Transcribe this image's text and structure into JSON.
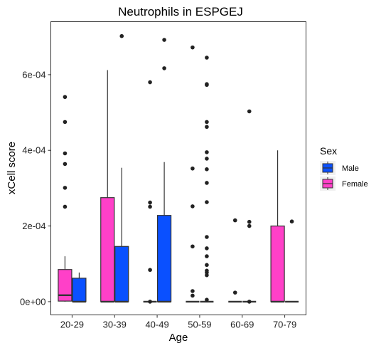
{
  "chart_data": {
    "type": "boxplot",
    "title": "Neutrophils in ESPGEJ",
    "xlabel": "Age",
    "ylabel": "xCell score",
    "categories": [
      "20-29",
      "30-39",
      "40-49",
      "50-59",
      "60-69",
      "70-79"
    ],
    "ylim": [
      -3.5e-05,
      0.00074
    ],
    "yticks": [
      0,
      0.0002,
      0.0004,
      0.0006
    ],
    "ytick_labels": [
      "0e+00",
      "2e-04",
      "4e-04",
      "6e-04"
    ],
    "grid": false,
    "legend": {
      "title": "Sex",
      "placement": "right",
      "entries": [
        {
          "name": "Male",
          "color": "#0A50FF"
        },
        {
          "name": "Female",
          "color": "#FF40C8"
        }
      ]
    },
    "series": [
      {
        "name": "Female",
        "color": "#FF40C8",
        "boxes": [
          {
            "category": "20-29",
            "q1": 1.5e-06,
            "median": 1.7e-05,
            "q3": 8.5e-05,
            "whisker_low": 0,
            "whisker_high": 0.00012,
            "outliers": [
              0.000251,
              0.000301,
              0.000364,
              0.000392,
              0.000475,
              0.000541
            ]
          },
          {
            "category": "30-39",
            "q1": 0,
            "median": 0,
            "q3": 0.000275,
            "whisker_low": 0,
            "whisker_high": 0.000612,
            "outliers": []
          },
          {
            "category": "40-49",
            "q1": 0,
            "median": 0,
            "q3": 0,
            "whisker_low": 0,
            "whisker_high": 0,
            "outliers": [
              0,
              8.4e-05,
              0.000251,
              0.000262,
              0.00058
            ]
          },
          {
            "category": "50-59",
            "q1": 0,
            "median": 0,
            "q3": 0,
            "whisker_low": 0,
            "whisker_high": 0,
            "outliers": [
              1.6e-05,
              2.8e-05,
              0.000146,
              0.000252,
              0.000352,
              0.000672
            ]
          },
          {
            "category": "60-69",
            "q1": 0,
            "median": 0,
            "q3": 0,
            "whisker_low": 0,
            "whisker_high": 0,
            "outliers": [
              2.4e-05,
              0.000215
            ]
          },
          {
            "category": "70-79",
            "q1": 0,
            "median": 0,
            "q3": 0.0002,
            "whisker_low": 0,
            "whisker_high": 0.0004,
            "outliers": []
          }
        ]
      },
      {
        "name": "Male",
        "color": "#0A50FF",
        "boxes": [
          {
            "category": "20-29",
            "q1": 0,
            "median": 0,
            "q3": 6.2e-05,
            "whisker_low": 0,
            "whisker_high": 7.7e-05,
            "outliers": []
          },
          {
            "category": "30-39",
            "q1": 0,
            "median": 0,
            "q3": 0.000146,
            "whisker_low": 0,
            "whisker_high": 0.000354,
            "outliers": [
              0.000702
            ]
          },
          {
            "category": "40-49",
            "q1": 0,
            "median": 0,
            "q3": 0.000228,
            "whisker_low": 0,
            "whisker_high": 0.000369,
            "outliers": [
              0.000617,
              0.000692
            ]
          },
          {
            "category": "50-59",
            "q1": 0,
            "median": 0,
            "q3": 0,
            "whisker_low": 0,
            "whisker_high": 0,
            "outliers": [
              5e-06,
              7e-05,
              7.7e-05,
              8.2e-05,
              9.7e-05,
              0.00012,
              0.000141,
              0.000171,
              0.000263,
              0.000314,
              0.00035,
              0.000378,
              0.000395,
              0.000462,
              0.000475,
              0.000573,
              0.000575,
              0.000645
            ]
          },
          {
            "category": "60-69",
            "q1": 0,
            "median": 0,
            "q3": 0,
            "whisker_low": 0,
            "whisker_high": 0,
            "outliers": [
              0,
              0.0002,
              0.000211,
              0.000503
            ]
          },
          {
            "category": "70-79",
            "q1": 0,
            "median": 0,
            "q3": 0,
            "whisker_low": 0,
            "whisker_high": 0,
            "outliers": [
              0.000212
            ]
          }
        ]
      }
    ]
  }
}
